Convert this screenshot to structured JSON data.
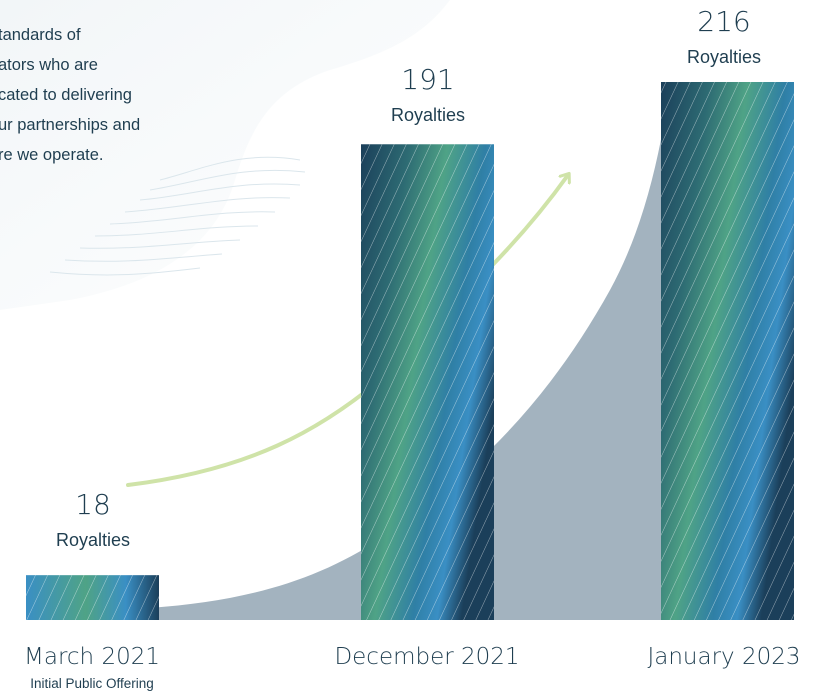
{
  "intro_lines": [
    "tandards of",
    "ators who are",
    "cated to delivering",
    "ur partnerships and",
    "re we operate."
  ],
  "colors": {
    "text": "#1f3e50",
    "bar_dark": "#1b3f5a",
    "bar_green": "#4fa386",
    "bar_blue": "#3a8fc4",
    "area": "#a3b3bf",
    "arrow": "#cfe3a8"
  },
  "chart_data": {
    "type": "bar",
    "categories": [
      "March 2021",
      "December 2021",
      "January 2023"
    ],
    "category_notes": [
      "Initial Public Offering",
      "",
      ""
    ],
    "values": [
      18,
      191,
      216
    ],
    "value_unit": "Royalties",
    "title": "",
    "xlabel": "",
    "ylabel": "",
    "ylim": [
      0,
      216
    ],
    "grid": false,
    "legend": "none"
  }
}
